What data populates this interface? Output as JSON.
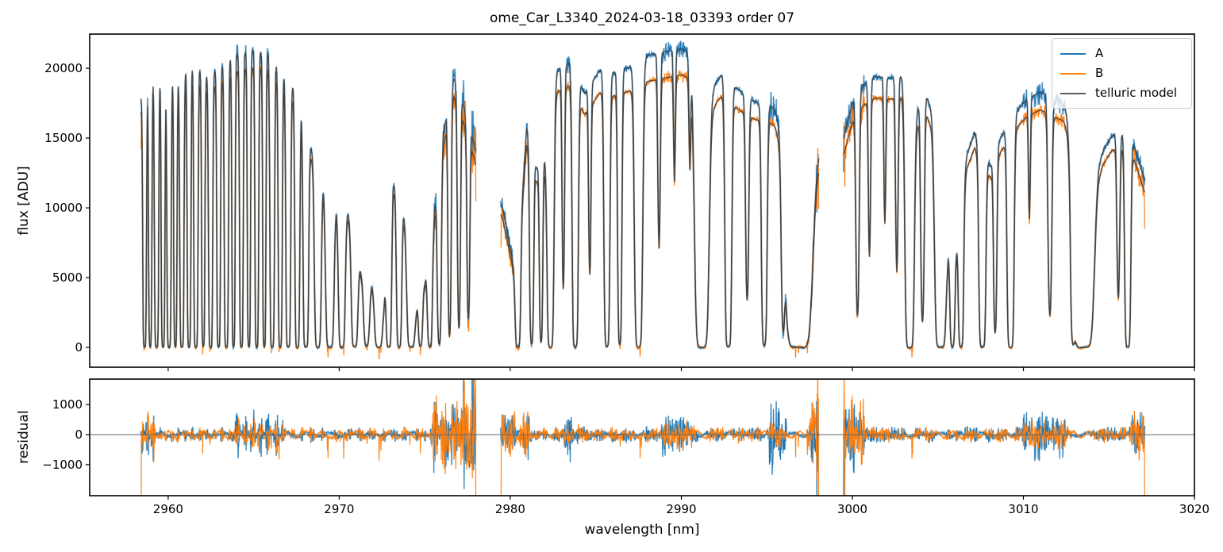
{
  "chart_data": {
    "type": "line",
    "title": "ome_Car_L3340_2024-03-18_03393  order 07",
    "xlabel": "wavelength [nm]",
    "ylabel_top": "flux [ADU]",
    "ylabel_bottom": "residual",
    "legend_position": "upper right",
    "grid": false,
    "axes": {
      "xlim": [
        2955.41,
        3020.0
      ],
      "ylim_top": [
        -1420,
        22450
      ],
      "ylim_bottom": [
        -2030,
        1845
      ],
      "xticks": [
        2960,
        2970,
        2980,
        2990,
        3000,
        3010,
        3020
      ],
      "xtick_labels": [
        "2960",
        "2970",
        "2980",
        "2990",
        "3000",
        "3010",
        "3020"
      ],
      "yticks_top": [
        0,
        5000,
        10000,
        15000,
        20000
      ],
      "ytick_labels_top": [
        "0",
        "5000",
        "10000",
        "15000",
        "20000"
      ],
      "yticks_bottom": [
        -1000,
        0,
        1000
      ],
      "ytick_labels_bottom": [
        "−1000",
        "0",
        "1000"
      ]
    },
    "series": [
      {
        "name": "A",
        "color": "#1f77b4"
      },
      {
        "name": "B",
        "color": "#ff7f0e"
      },
      {
        "name": "telluric model",
        "color": "#404040",
        "legend_color": "#595959"
      }
    ],
    "seed": 11,
    "sample_step": 0.018,
    "base_noise": {
      "ampA": 260,
      "ampB": 260
    },
    "segments": [
      [
        2958.4,
        2978.0
      ],
      [
        2979.44,
        2998.05
      ],
      [
        2999.47,
        3017.1
      ]
    ],
    "b_scale": [
      [
        2958.4,
        0.95
      ],
      [
        2964,
        0.94
      ],
      [
        2971,
        0.95
      ],
      [
        2977,
        0.93
      ],
      [
        2983,
        0.92
      ],
      [
        2989,
        0.91
      ],
      [
        2995,
        0.93
      ],
      [
        3001,
        0.92
      ],
      [
        3008,
        0.93
      ],
      [
        3012,
        0.93
      ],
      [
        3017,
        0.93
      ]
    ],
    "continuum": [
      [
        2955.0,
        17000
      ],
      [
        2958.4,
        17800
      ],
      [
        2959.0,
        19600
      ],
      [
        2959.9,
        20000
      ],
      [
        2960.6,
        19300
      ],
      [
        2961.4,
        20600
      ],
      [
        2962.2,
        19400
      ],
      [
        2963.1,
        20200
      ],
      [
        2963.9,
        21000
      ],
      [
        2964.9,
        21300
      ],
      [
        2965.9,
        21100
      ],
      [
        2966.8,
        19600
      ],
      [
        2967.6,
        18300
      ],
      [
        2968.3,
        14500
      ],
      [
        2969.0,
        12300
      ],
      [
        2969.8,
        10500
      ],
      [
        2970.5,
        9700
      ],
      [
        2971.3,
        5200
      ],
      [
        2971.9,
        4600
      ],
      [
        2972.6,
        3100
      ],
      [
        2973.15,
        11900
      ],
      [
        2973.8,
        9400
      ],
      [
        2974.5,
        3000
      ],
      [
        2975.0,
        4500
      ],
      [
        2975.55,
        9500
      ],
      [
        2976.1,
        15500
      ],
      [
        2976.7,
        19300
      ],
      [
        2977.2,
        17600
      ],
      [
        2977.75,
        15200
      ],
      [
        2978.0,
        14000
      ],
      [
        2979.55,
        10000
      ],
      [
        2980.1,
        6500
      ],
      [
        2980.35,
        3800
      ],
      [
        2980.95,
        15700
      ],
      [
        2981.55,
        12800
      ],
      [
        2982.1,
        13800
      ],
      [
        2982.75,
        19900
      ],
      [
        2983.45,
        20400
      ],
      [
        2984.35,
        18200
      ],
      [
        2985.25,
        19900
      ],
      [
        2986.05,
        19700
      ],
      [
        2986.95,
        20100
      ],
      [
        2988.0,
        20900
      ],
      [
        2989.0,
        21200
      ],
      [
        2990.0,
        21400
      ],
      [
        2990.95,
        20700
      ],
      [
        2991.9,
        18800
      ],
      [
        2992.4,
        19600
      ],
      [
        2993.0,
        18800
      ],
      [
        2993.6,
        18200
      ],
      [
        2994.3,
        17600
      ],
      [
        2995.0,
        17400
      ],
      [
        2995.7,
        17100
      ],
      [
        2996.4,
        16200
      ],
      [
        2997.1,
        14200
      ],
      [
        2997.8,
        14900
      ],
      [
        2998.0,
        14600
      ],
      [
        2999.5,
        15000
      ],
      [
        3000.0,
        17500
      ],
      [
        3000.6,
        18800
      ],
      [
        3001.3,
        19400
      ],
      [
        3002.2,
        19300
      ],
      [
        3003.0,
        19500
      ],
      [
        3003.75,
        17100
      ],
      [
        3004.35,
        17900
      ],
      [
        3004.85,
        16500
      ],
      [
        3005.55,
        7700
      ],
      [
        3006.1,
        7200
      ],
      [
        3006.7,
        13800
      ],
      [
        3007.15,
        15400
      ],
      [
        3008.1,
        13000
      ],
      [
        3008.65,
        15000
      ],
      [
        3009.4,
        16600
      ],
      [
        3010.2,
        17800
      ],
      [
        3011.0,
        18300
      ],
      [
        3011.9,
        17700
      ],
      [
        3012.5,
        17400
      ],
      [
        3013.2,
        16800
      ],
      [
        3014.5,
        13800
      ],
      [
        3015.2,
        15200
      ],
      [
        3015.95,
        15400
      ],
      [
        3016.5,
        14400
      ],
      [
        3017.1,
        11900
      ],
      [
        3020.0,
        11500
      ]
    ],
    "absorption_lines": [
      [
        2958.62,
        7,
        0.055
      ],
      [
        2958.95,
        6,
        0.05
      ],
      [
        2959.32,
        8,
        0.06
      ],
      [
        2959.7,
        7,
        0.055
      ],
      [
        2960.05,
        8,
        0.06
      ],
      [
        2960.42,
        6,
        0.05
      ],
      [
        2960.8,
        8,
        0.06
      ],
      [
        2961.22,
        7,
        0.055
      ],
      [
        2961.62,
        8,
        0.06
      ],
      [
        2962.05,
        6,
        0.05
      ],
      [
        2962.48,
        8,
        0.06
      ],
      [
        2962.95,
        7,
        0.055
      ],
      [
        2963.4,
        8,
        0.06
      ],
      [
        2963.82,
        6,
        0.05
      ],
      [
        2964.28,
        7,
        0.055
      ],
      [
        2964.72,
        6,
        0.05
      ],
      [
        2965.18,
        7,
        0.055
      ],
      [
        2965.62,
        6,
        0.05
      ],
      [
        2966.08,
        8,
        0.065
      ],
      [
        2966.55,
        7,
        0.06
      ],
      [
        2967.02,
        8,
        0.07
      ],
      [
        2967.55,
        8,
        0.07
      ],
      [
        2968.05,
        8,
        0.08
      ],
      [
        2968.75,
        7,
        0.1
      ],
      [
        2969.45,
        8,
        0.12
      ],
      [
        2970.15,
        7,
        0.1
      ],
      [
        2970.9,
        6,
        0.1
      ],
      [
        2971.6,
        4,
        0.1
      ],
      [
        2972.3,
        6,
        0.12
      ],
      [
        2972.9,
        7,
        0.08
      ],
      [
        2973.5,
        6,
        0.08
      ],
      [
        2974.2,
        7,
        0.12
      ],
      [
        2974.75,
        4,
        0.07
      ],
      [
        2975.3,
        5,
        0.08
      ],
      [
        2975.85,
        4,
        0.07
      ],
      [
        2976.45,
        3,
        0.06
      ],
      [
        2977.0,
        2.5,
        0.06
      ],
      [
        2977.55,
        2,
        0.06
      ],
      [
        2980.45,
        6,
        0.08
      ],
      [
        2981.25,
        4,
        0.07
      ],
      [
        2981.8,
        3.5,
        0.06
      ],
      [
        2982.35,
        7,
        0.1
      ],
      [
        2983.1,
        1.5,
        0.055
      ],
      [
        2983.8,
        7,
        0.09
      ],
      [
        2984.65,
        1.2,
        0.055
      ],
      [
        2985.65,
        6,
        0.09
      ],
      [
        2986.4,
        4.5,
        0.07
      ],
      [
        2987.5,
        7,
        0.12
      ],
      [
        2988.7,
        1.0,
        0.06
      ],
      [
        2989.6,
        0.5,
        0.05
      ],
      [
        2990.5,
        0.4,
        0.05
      ],
      [
        2991.2,
        9,
        0.2
      ],
      [
        2992.75,
        7,
        0.1
      ],
      [
        2993.85,
        1.6,
        0.07
      ],
      [
        2994.85,
        5,
        0.09
      ],
      [
        2995.95,
        2,
        0.07
      ],
      [
        2996.85,
        10,
        0.38
      ],
      [
        3000.3,
        2,
        0.07
      ],
      [
        3001.0,
        1.0,
        0.055
      ],
      [
        3001.9,
        0.7,
        0.05
      ],
      [
        3002.6,
        1.2,
        0.06
      ],
      [
        3003.35,
        9,
        0.13
      ],
      [
        3004.1,
        2.2,
        0.07
      ],
      [
        3005.15,
        9,
        0.16
      ],
      [
        3005.85,
        5,
        0.08
      ],
      [
        3006.35,
        6,
        0.08
      ],
      [
        3007.6,
        8,
        0.1
      ],
      [
        3008.35,
        2.5,
        0.065
      ],
      [
        3009.25,
        8,
        0.1
      ],
      [
        3010.35,
        0.6,
        0.05
      ],
      [
        3011.55,
        2.0,
        0.08
      ],
      [
        3012.9,
        3,
        0.08
      ],
      [
        3013.5,
        10,
        0.3
      ],
      [
        3015.55,
        1.4,
        0.065
      ],
      [
        3016.1,
        7,
        0.09
      ]
    ],
    "noise_regions": [
      {
        "range": [
          2958.45,
          2959.3
        ],
        "ampA": 1100,
        "ampB": 1100
      },
      {
        "range": [
          2963.7,
          2966.7
        ],
        "ampA": 800,
        "ampB": 550
      },
      {
        "range": [
          2975.3,
          2977.25
        ],
        "ampA": 1300,
        "ampB": 1300
      },
      {
        "range": [
          2977.25,
          2978.0
        ],
        "ampA": 2400,
        "ampB": 2400
      },
      {
        "range": [
          2979.5,
          2981.3
        ],
        "ampA": 800,
        "ampB": 800
      },
      {
        "range": [
          2983.1,
          2984.0
        ],
        "ampA": 900,
        "ampB": 450
      },
      {
        "range": [
          2988.8,
          2991.0
        ],
        "ampA": 700,
        "ampB": 500
      },
      {
        "range": [
          2995.15,
          2996.15
        ],
        "ampA": 1500,
        "ampB": 550
      },
      {
        "range": [
          2997.35,
          2998.05
        ],
        "ampA": 1500,
        "ampB": 1700
      },
      {
        "range": [
          2999.47,
          3000.7
        ],
        "ampA": 1200,
        "ampB": 1300
      },
      {
        "range": [
          3010.0,
          3012.45
        ],
        "ampA": 800,
        "ampB": 450
      },
      {
        "range": [
          3015.9,
          3017.1
        ],
        "ampA": 700,
        "ampB": 800
      }
    ],
    "edge_spikes": [
      {
        "x": 2958.41,
        "series": "B",
        "dev": -2600
      },
      {
        "x": 2977.99,
        "series": "B",
        "dev": -2600
      },
      {
        "x": 2979.45,
        "series": "B",
        "dev": -2300
      },
      {
        "x": 2997.92,
        "series": "A",
        "dev": -2600
      },
      {
        "x": 2997.98,
        "series": "B",
        "dev": 2300
      },
      {
        "x": 2998.04,
        "series": "B",
        "dev": -2600
      },
      {
        "x": 2999.48,
        "series": "A",
        "dev": -2400
      },
      {
        "x": 2999.52,
        "series": "B",
        "dev": 2200
      },
      {
        "x": 2999.56,
        "series": "B",
        "dev": -2600
      },
      {
        "x": 3017.09,
        "series": "B",
        "dev": -2600
      }
    ]
  }
}
